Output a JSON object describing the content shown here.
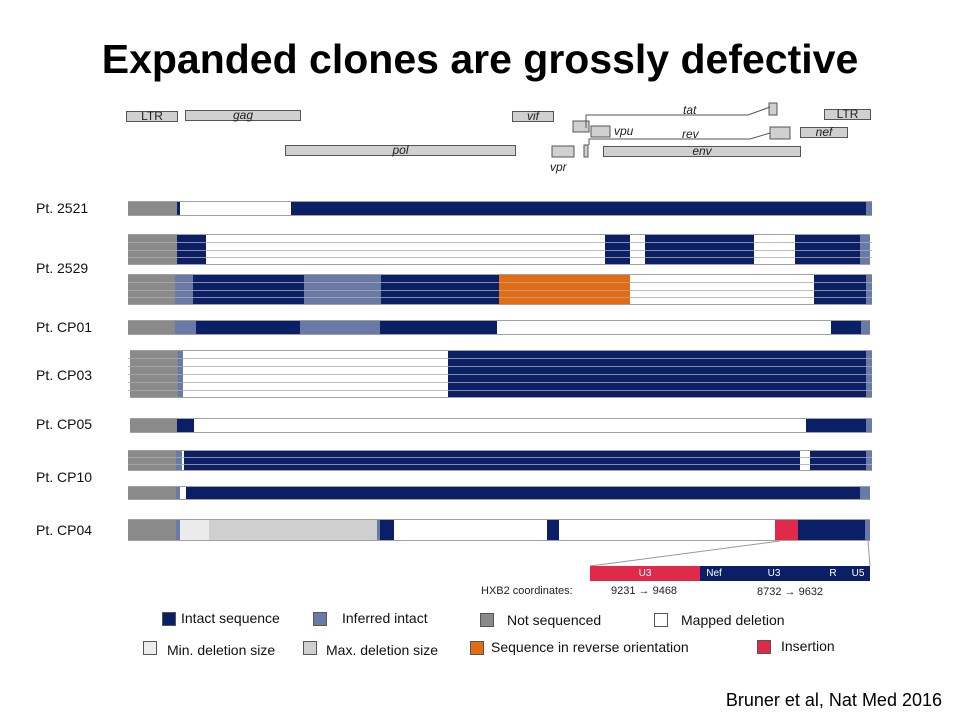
{
  "title": "Expanded clones are grossly defective",
  "citation": "Bruner et al, Nat Med 2016",
  "genome_map": {
    "genes": [
      "LTR",
      "gag",
      "vif",
      "tat",
      "LTR",
      "vpu",
      "rev",
      "nef",
      "pol",
      "vpr",
      "env"
    ]
  },
  "colors": {
    "intact": "#0b1f66",
    "inferred": "#6a7aa6",
    "not_sequenced": "#8a8a8a",
    "mapped_deletion": "#ffffff",
    "min_deletion": "#ebebeb",
    "max_deletion": "#cfcfcf",
    "reverse": "#e36c12",
    "insertion": "#e02a4a"
  },
  "patients": [
    {
      "label": "Pt. 2521"
    },
    {
      "label": "Pt. 2529"
    },
    {
      "label": "Pt. CP01"
    },
    {
      "label": "Pt.  CP03"
    },
    {
      "label": "Pt.  CP05"
    },
    {
      "label": "Pt.  CP10"
    },
    {
      "label": "Pt.  CP04"
    }
  ],
  "zoom": {
    "segments": [
      "U3",
      "Nef",
      "U3",
      "R",
      "U5"
    ],
    "hxb2_label": "HXB2 coordinates:",
    "range1": "9231 → 9468",
    "range2": "8732 → 9632"
  },
  "legend": {
    "intact": "Intact sequence",
    "inferred": "Inferred intact",
    "not_sequenced": "Not sequenced",
    "mapped_deletion": "Mapped deletion",
    "min_deletion": "Min. deletion size",
    "max_deletion": "Max. deletion size",
    "reverse": "Sequence in reverse orientation",
    "insertion": "Insertion"
  }
}
